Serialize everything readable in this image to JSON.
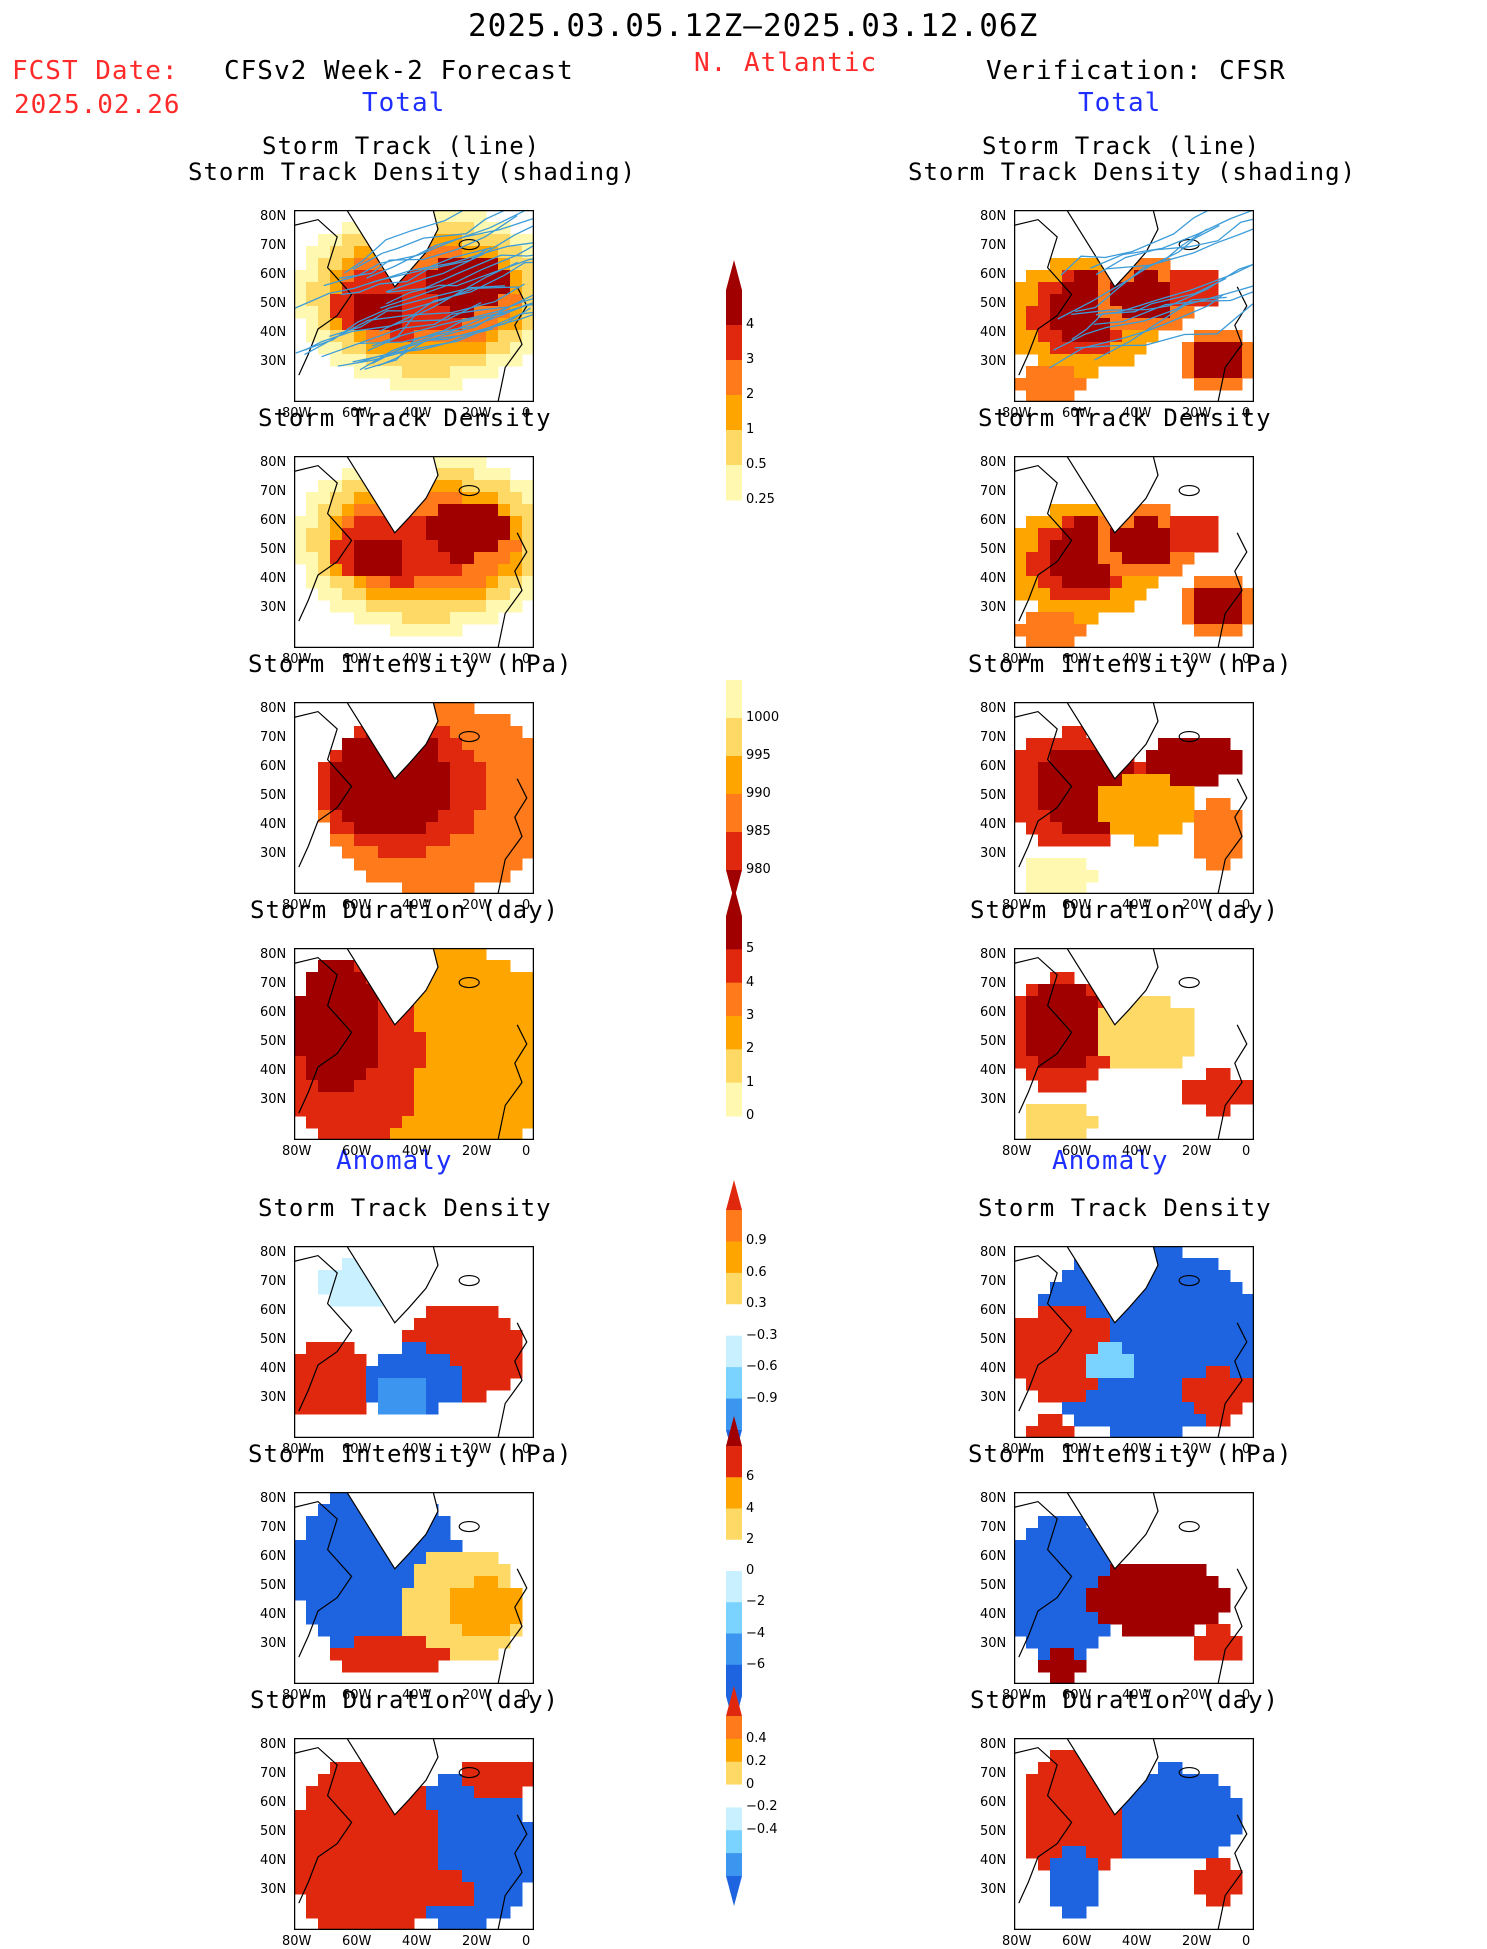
{
  "header": {
    "period": "2025.03.05.12Z–2025.03.12.06Z",
    "fcst_label": "FCST Date:",
    "fcst_date": "2025.02.26",
    "left_model": "CFSv2 Week-2 Forecast",
    "region": "N. Atlantic",
    "right_model": "Verification: CFSR",
    "total_label": "Total",
    "anomaly_label": "Anomaly"
  },
  "panel_titles": {
    "track_line": "Storm Track (line)",
    "track_density_shading": "Storm Track Density (shading)",
    "density": "Storm Track Density",
    "intensity": "Storm Intensity (hPa)",
    "duration": "Storm Duration (day)"
  },
  "axes": {
    "lat_ticks": [
      "80N",
      "70N",
      "60N",
      "50N",
      "40N",
      "30N"
    ],
    "lon_ticks": [
      "80W",
      "60W",
      "40W",
      "20W",
      "0"
    ]
  },
  "colorbars": {
    "density_total": [
      "4",
      "3",
      "2",
      "1",
      "0.5",
      "0.25"
    ],
    "intensity_total": [
      "1000",
      "995",
      "990",
      "985",
      "980"
    ],
    "duration_total": [
      "5",
      "4",
      "3",
      "2",
      "1",
      "0"
    ],
    "density_anom": [
      "0.9",
      "0.6",
      "0.3",
      "−0.3",
      "−0.6",
      "−0.9"
    ],
    "intensity_anom": [
      "6",
      "4",
      "2",
      "0",
      "−2",
      "−4",
      "−6"
    ],
    "duration_anom": [
      "0.4",
      "0.2",
      "0",
      "−0.2",
      "−0.4"
    ]
  },
  "colors": {
    "warm": [
      "#fff8b0",
      "#ffd966",
      "#ffa500",
      "#ff7a1a",
      "#e0280f",
      "#a00000"
    ],
    "cool": [
      "#c8f0ff",
      "#7ad2ff",
      "#3c96ef",
      "#1e64e0"
    ],
    "track_line": "#3c9cd8",
    "title_red": "#ff2a2a",
    "title_blue": "#1f2fff"
  }
}
